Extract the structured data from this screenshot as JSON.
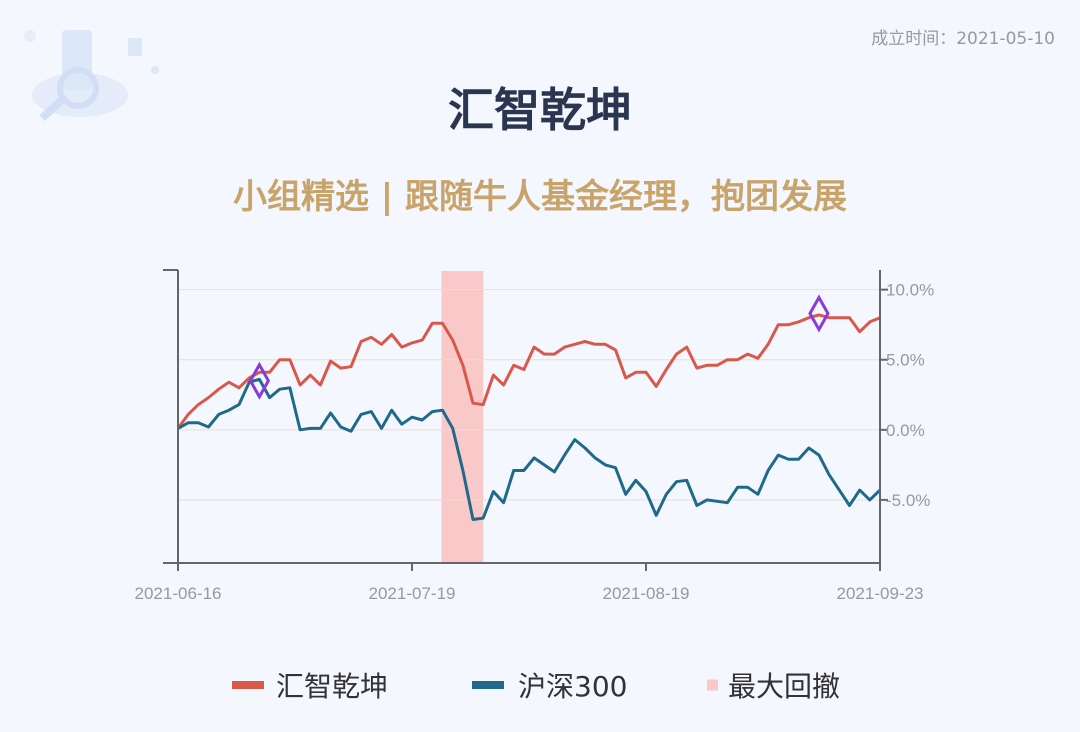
{
  "header": {
    "established": "成立时间：2021-05-10",
    "title": "汇智乾坤",
    "subtitle": "小组精选 | 跟随牛人基金经理，抱团发展"
  },
  "chart_data": {
    "type": "line",
    "categories": [
      "2021-06-16",
      null,
      null,
      null,
      null,
      null,
      null,
      null,
      null,
      null,
      null,
      null,
      null,
      null,
      null,
      null,
      null,
      null,
      null,
      null,
      null,
      null,
      null,
      "2021-07-19",
      null,
      null,
      null,
      null,
      null,
      null,
      null,
      null,
      null,
      null,
      null,
      null,
      null,
      null,
      null,
      null,
      null,
      null,
      null,
      null,
      null,
      null,
      "2021-08-19",
      null,
      null,
      null,
      null,
      null,
      null,
      null,
      null,
      null,
      null,
      null,
      null,
      null,
      null,
      null,
      null,
      null,
      null,
      null,
      null,
      null,
      null,
      "2021-09-23"
    ],
    "series": [
      {
        "name": "汇智乾坤",
        "color": "#d9584a",
        "values": [
          0.1,
          1.1,
          1.8,
          2.3,
          2.9,
          3.4,
          3.0,
          3.7,
          4.1,
          4.1,
          5.0,
          5.0,
          3.2,
          3.9,
          3.2,
          4.9,
          4.4,
          4.5,
          6.3,
          6.6,
          6.1,
          6.8,
          5.9,
          6.2,
          6.4,
          7.6,
          7.6,
          6.4,
          4.6,
          1.9,
          1.8,
          3.9,
          3.2,
          4.6,
          4.3,
          5.9,
          5.4,
          5.4,
          5.9,
          6.1,
          6.3,
          6.1,
          6.1,
          5.7,
          3.7,
          4.1,
          4.1,
          3.1,
          4.3,
          5.4,
          5.9,
          4.4,
          4.6,
          4.6,
          5.0,
          5.0,
          5.4,
          5.1,
          6.1,
          7.5,
          7.5,
          7.7,
          8.0,
          8.2,
          8.0,
          8.0,
          8.0,
          7.0,
          7.7,
          8.0
        ]
      },
      {
        "name": "沪深300",
        "color": "#1f6a8a",
        "values": [
          0.1,
          0.5,
          0.5,
          0.2,
          1.1,
          1.4,
          1.8,
          3.4,
          3.6,
          2.3,
          2.9,
          3.0,
          0.0,
          0.1,
          0.1,
          1.2,
          0.2,
          -0.1,
          1.1,
          1.3,
          0.1,
          1.4,
          0.4,
          0.9,
          0.7,
          1.3,
          1.4,
          0.1,
          -2.9,
          -6.4,
          -6.3,
          -4.4,
          -5.2,
          -2.9,
          -2.9,
          -2.0,
          -2.5,
          -3.0,
          -1.8,
          -0.7,
          -1.3,
          -2.0,
          -2.5,
          -2.7,
          -4.6,
          -3.6,
          -4.4,
          -6.1,
          -4.6,
          -3.7,
          -3.6,
          -5.4,
          -5.0,
          -5.1,
          -5.2,
          -4.1,
          -4.1,
          -4.6,
          -2.9,
          -1.8,
          -2.1,
          -2.1,
          -1.3,
          -1.8,
          -3.2,
          -4.3,
          -5.4,
          -4.3,
          -5.0,
          -4.3
        ]
      }
    ],
    "highlight": {
      "name": "最大回撤",
      "color": "#f9c9c9",
      "from": 25.9,
      "to": 30
    },
    "markers": {
      "color": "#8a3ad8",
      "points": [
        {
          "x": 8,
          "y": 3.5
        },
        {
          "x": 63,
          "y": 8.3
        }
      ]
    },
    "ylim": [
      -9.5,
      11.4
    ],
    "yticks": [
      {
        "value": -5,
        "label": "-5.0%"
      },
      {
        "value": 0,
        "label": "0.0%"
      },
      {
        "value": 5,
        "label": "5.0%"
      },
      {
        "value": 10,
        "label": "10.0%"
      }
    ],
    "grid": true
  }
}
